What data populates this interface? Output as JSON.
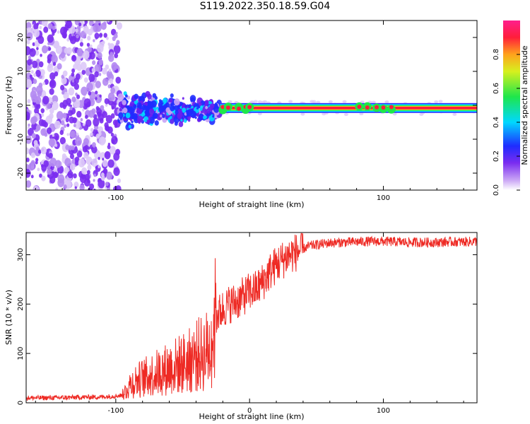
{
  "figure": {
    "title": "S119.2022.350.18.59.G04"
  },
  "colors": {
    "snr_line": "#ee2a24",
    "spectrum_points": "#7a2cf0",
    "track_core": "#ff1744",
    "track_outer": "#00e5ff",
    "axis": "#000000"
  },
  "chart_data": [
    {
      "id": "spectrogram",
      "type": "heatmap",
      "title": "",
      "xlabel": "Height of straight line (km)",
      "ylabel": "Frequency (Hz)",
      "xlim": [
        -167,
        170
      ],
      "ylim": [
        -25,
        25
      ],
      "xticks": [
        -100,
        0,
        100
      ],
      "xtick_labels": [
        "-100",
        "",
        "100"
      ],
      "yticks": [
        -20,
        -10,
        0,
        10,
        20
      ],
      "ytick_labels": [
        "-20",
        "-10",
        "0",
        "10",
        "20"
      ],
      "grid": false,
      "colorbar": {
        "label": "Normalized spectral amplitude",
        "range": [
          0,
          1
        ],
        "ticks": [
          "0.0",
          "0.2",
          "0.4",
          "0.6",
          "0.8"
        ],
        "colormap": "rainbow (white-violet-blue-cyan-green-yellow-red-magenta)"
      },
      "features": [
        {
          "x_range": [
            -167,
            -97
          ],
          "description_value": "broadband noise",
          "freq_spread": [
            -25,
            25
          ],
          "amplitude": 0.1
        },
        {
          "x_range": [
            -97,
            -22
          ],
          "freq_spread": [
            -6,
            6
          ],
          "amplitude": 0.25
        },
        {
          "x_range": [
            -22,
            170
          ],
          "freq_center": -0.8,
          "amplitude": 0.85
        }
      ]
    },
    {
      "id": "snr",
      "type": "line",
      "title": "",
      "xlabel": "Height of straight line (km)",
      "ylabel": "SNR (10 * v/v)",
      "xlim": [
        -167,
        170
      ],
      "ylim": [
        0,
        345
      ],
      "xticks": [
        -100,
        0,
        100
      ],
      "xtick_labels": [
        "-100",
        "0",
        "100"
      ],
      "yticks": [
        0,
        100,
        200,
        300
      ],
      "ytick_labels": [
        "0",
        "100",
        "200",
        "300"
      ],
      "grid": false,
      "series": [
        {
          "x": [
            -167,
            -150,
            -130,
            -110,
            -95,
            -90,
            -85,
            -80,
            -75,
            -70,
            -65,
            -60,
            -55,
            -50,
            -45,
            -40,
            -35,
            -30,
            -25,
            -20,
            -15,
            -10,
            -5,
            0,
            5,
            10,
            15,
            20,
            25,
            30,
            35,
            40,
            45,
            50,
            55,
            60,
            70,
            80,
            90,
            100,
            110,
            120,
            130,
            140,
            150,
            160,
            170
          ],
          "values": [
            10,
            10,
            11,
            12,
            15,
            35,
            45,
            50,
            55,
            60,
            65,
            70,
            75,
            80,
            85,
            95,
            100,
            110,
            175,
            190,
            200,
            205,
            215,
            225,
            230,
            245,
            265,
            280,
            290,
            300,
            305,
            312,
            318,
            320,
            322,
            324,
            325,
            326,
            327,
            327,
            326,
            325,
            325,
            325,
            326,
            326,
            327
          ]
        }
      ]
    }
  ]
}
